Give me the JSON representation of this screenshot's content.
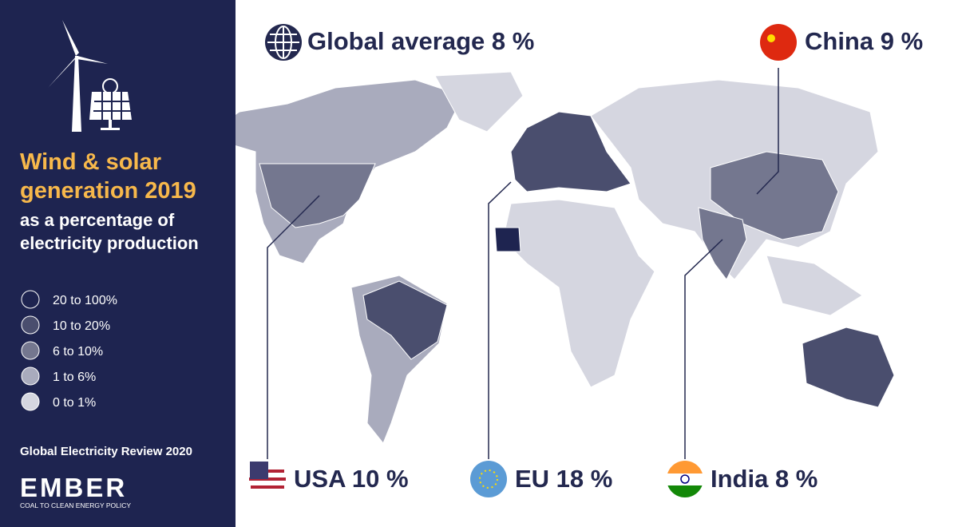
{
  "sidebar": {
    "title_lines": [
      "Wind & solar",
      "generation 2019"
    ],
    "subtitle_lines": [
      "as a percentage of",
      "electricity production"
    ],
    "legend": [
      {
        "label": "20 to 100%",
        "color": "#1e2450"
      },
      {
        "label": "10 to 20%",
        "color": "#4a4e6e"
      },
      {
        "label": "6 to 10%",
        "color": "#74778f"
      },
      {
        "label": "1 to 6%",
        "color": "#a9abbd"
      },
      {
        "label": "0 to 1%",
        "color": "#d5d6e0"
      }
    ],
    "source": "Global Electricity Review 2020",
    "logo": {
      "name": "EMBER",
      "tagline": "COAL TO CLEAN ENERGY POLICY"
    }
  },
  "callouts": {
    "global": "Global average 8 %",
    "china": "China 9 %",
    "usa": "USA 10 %",
    "eu": "EU 18 %",
    "india": "India 8 %"
  }
}
